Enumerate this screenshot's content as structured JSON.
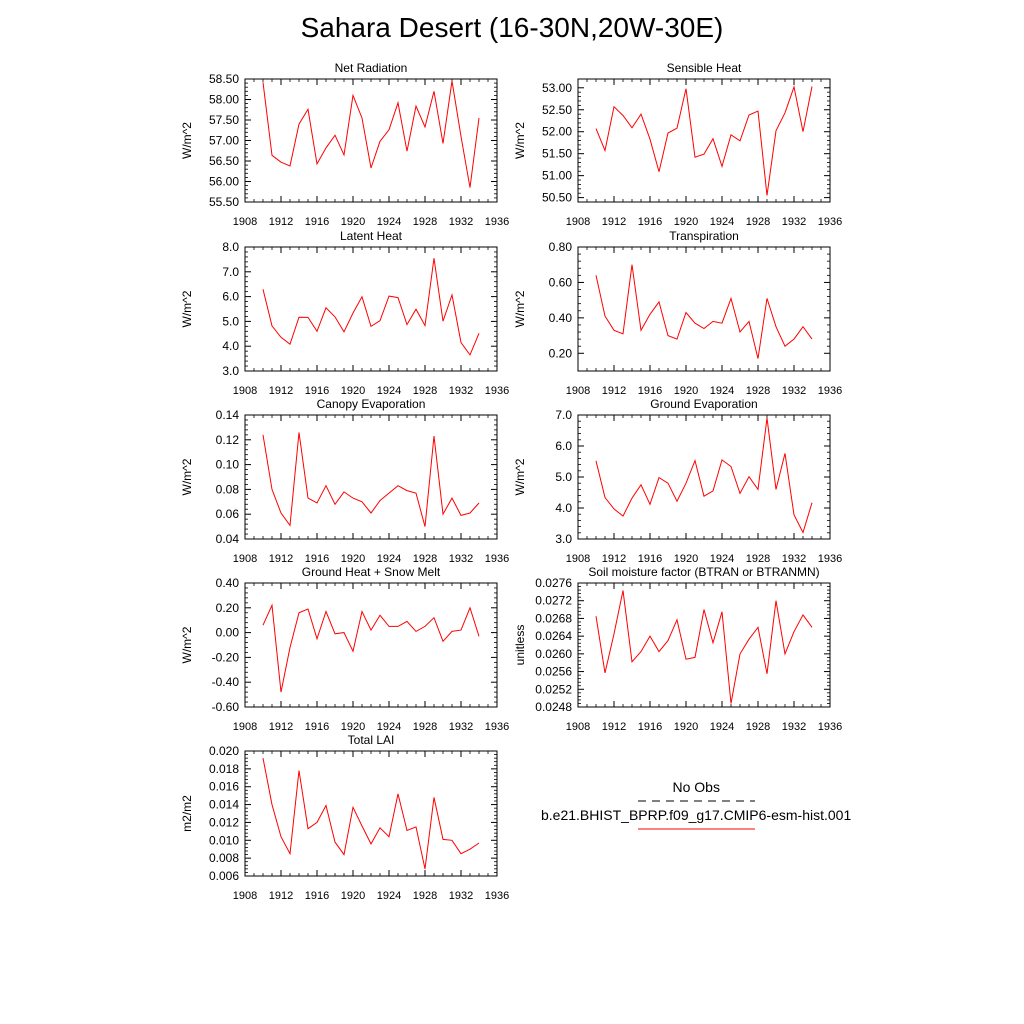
{
  "title": "Sahara Desert (16-30N,20W-30E)",
  "legend": {
    "items": [
      {
        "label": "No Obs",
        "color": "#000000",
        "dash": "8,6"
      },
      {
        "label": "b.e21.BHIST_BPRP.f09_g17.CMIP6-esm-hist.001",
        "color": "#ff0000",
        "dash": ""
      }
    ]
  },
  "chart_data": [
    {
      "type": "line",
      "title": "Net Radiation",
      "ylabel": "W/m^2",
      "xlim": [
        1908,
        1936
      ],
      "xticks": [
        1908,
        1912,
        1916,
        1920,
        1924,
        1928,
        1932,
        1936
      ],
      "ylim": [
        55.5,
        58.5
      ],
      "yticks": [
        "55.50",
        "56.00",
        "56.50",
        "57.00",
        "57.50",
        "58.00",
        "58.50"
      ],
      "series": [
        {
          "color": "#ff0000",
          "x": [
            1910,
            1911,
            1912,
            1913,
            1914,
            1915,
            1916,
            1917,
            1918,
            1919,
            1920,
            1921,
            1922,
            1923,
            1924,
            1925,
            1926,
            1927,
            1928,
            1929,
            1930,
            1931,
            1932,
            1933,
            1934
          ],
          "y": [
            58.42,
            56.64,
            56.47,
            56.38,
            57.4,
            57.76,
            56.43,
            56.82,
            57.13,
            56.65,
            58.1,
            57.55,
            56.33,
            56.98,
            57.26,
            57.92,
            56.74,
            57.84,
            57.33,
            58.2,
            56.93,
            58.45,
            57.1,
            55.85,
            57.55
          ]
        }
      ]
    },
    {
      "type": "line",
      "title": "Sensible Heat",
      "ylabel": "W/m^2",
      "xlim": [
        1908,
        1936
      ],
      "xticks": [
        1908,
        1912,
        1916,
        1920,
        1924,
        1928,
        1932,
        1936
      ],
      "ylim": [
        50.4,
        53.2
      ],
      "yticks": [
        "50.50",
        "51.00",
        "51.50",
        "52.00",
        "52.50",
        "53.00"
      ],
      "series": [
        {
          "color": "#ff0000",
          "x": [
            1910,
            1911,
            1912,
            1913,
            1914,
            1915,
            1916,
            1917,
            1918,
            1919,
            1920,
            1921,
            1922,
            1923,
            1924,
            1925,
            1926,
            1927,
            1928,
            1929,
            1930,
            1931,
            1932,
            1933,
            1934
          ],
          "y": [
            52.07,
            51.57,
            52.57,
            52.37,
            52.09,
            52.4,
            51.83,
            51.09,
            51.97,
            52.08,
            52.98,
            51.42,
            51.49,
            51.84,
            51.21,
            51.93,
            51.79,
            52.38,
            52.47,
            50.55,
            52.02,
            52.43,
            53.02,
            52.0,
            53.03
          ]
        }
      ]
    },
    {
      "type": "line",
      "title": "Latent Heat",
      "ylabel": "W/m^2",
      "xlim": [
        1908,
        1936
      ],
      "xticks": [
        1908,
        1912,
        1916,
        1920,
        1924,
        1928,
        1932,
        1936
      ],
      "ylim": [
        3.0,
        8.0
      ],
      "yticks": [
        "3.0",
        "4.0",
        "5.0",
        "6.0",
        "7.0",
        "8.0"
      ],
      "series": [
        {
          "color": "#ff0000",
          "x": [
            1910,
            1911,
            1912,
            1913,
            1914,
            1915,
            1916,
            1917,
            1918,
            1919,
            1920,
            1921,
            1922,
            1923,
            1924,
            1925,
            1926,
            1927,
            1928,
            1929,
            1930,
            1931,
            1932,
            1933,
            1934
          ],
          "y": [
            6.3,
            4.82,
            4.36,
            4.08,
            5.17,
            5.16,
            4.6,
            5.55,
            5.18,
            4.58,
            5.34,
            5.99,
            4.8,
            5.03,
            6.02,
            5.96,
            4.87,
            5.49,
            4.83,
            7.55,
            5.01,
            6.07,
            4.15,
            3.65,
            4.52
          ]
        }
      ]
    },
    {
      "type": "line",
      "title": "Transpiration",
      "ylabel": "W/m^2",
      "xlim": [
        1908,
        1936
      ],
      "xticks": [
        1908,
        1912,
        1916,
        1920,
        1924,
        1928,
        1932,
        1936
      ],
      "ylim": [
        0.1,
        0.8
      ],
      "yticks": [
        "0.20",
        "0.40",
        "0.60",
        "0.80"
      ],
      "series": [
        {
          "color": "#ff0000",
          "x": [
            1910,
            1911,
            1912,
            1913,
            1914,
            1915,
            1916,
            1917,
            1918,
            1919,
            1920,
            1921,
            1922,
            1923,
            1924,
            1925,
            1926,
            1927,
            1928,
            1929,
            1930,
            1931,
            1932,
            1933,
            1934
          ],
          "y": [
            0.64,
            0.41,
            0.33,
            0.31,
            0.7,
            0.33,
            0.42,
            0.49,
            0.3,
            0.28,
            0.43,
            0.37,
            0.34,
            0.38,
            0.37,
            0.51,
            0.32,
            0.38,
            0.17,
            0.51,
            0.35,
            0.24,
            0.28,
            0.35,
            0.28
          ]
        }
      ]
    },
    {
      "type": "line",
      "title": "Canopy Evaporation",
      "ylabel": "W/m^2",
      "xlim": [
        1908,
        1936
      ],
      "xticks": [
        1908,
        1912,
        1916,
        1920,
        1924,
        1928,
        1932,
        1936
      ],
      "ylim": [
        0.04,
        0.14
      ],
      "yticks": [
        "0.04",
        "0.06",
        "0.08",
        "0.10",
        "0.12",
        "0.14"
      ],
      "series": [
        {
          "color": "#ff0000",
          "x": [
            1910,
            1911,
            1912,
            1913,
            1914,
            1915,
            1916,
            1917,
            1918,
            1919,
            1920,
            1921,
            1922,
            1923,
            1924,
            1925,
            1926,
            1927,
            1928,
            1929,
            1930,
            1931,
            1932,
            1933,
            1934
          ],
          "y": [
            0.124,
            0.08,
            0.061,
            0.051,
            0.126,
            0.073,
            0.069,
            0.083,
            0.068,
            0.078,
            0.073,
            0.07,
            0.061,
            0.071,
            0.077,
            0.083,
            0.079,
            0.077,
            0.05,
            0.123,
            0.06,
            0.073,
            0.059,
            0.061,
            0.069
          ]
        }
      ]
    },
    {
      "type": "line",
      "title": "Ground Evaporation",
      "ylabel": "W/m^2",
      "xlim": [
        1908,
        1936
      ],
      "xticks": [
        1908,
        1912,
        1916,
        1920,
        1924,
        1928,
        1932,
        1936
      ],
      "ylim": [
        3.0,
        7.0
      ],
      "yticks": [
        "3.0",
        "4.0",
        "5.0",
        "6.0",
        "7.0"
      ],
      "series": [
        {
          "color": "#ff0000",
          "x": [
            1910,
            1911,
            1912,
            1913,
            1914,
            1915,
            1916,
            1917,
            1918,
            1919,
            1920,
            1921,
            1922,
            1923,
            1924,
            1925,
            1926,
            1927,
            1928,
            1929,
            1930,
            1931,
            1932,
            1933,
            1934
          ],
          "y": [
            5.52,
            4.34,
            3.97,
            3.74,
            4.32,
            4.75,
            4.12,
            4.98,
            4.8,
            4.22,
            4.8,
            5.53,
            4.38,
            4.55,
            5.55,
            5.34,
            4.47,
            5.01,
            4.6,
            6.9,
            4.6,
            5.76,
            3.78,
            3.21,
            4.17
          ]
        }
      ]
    },
    {
      "type": "line",
      "title": "Ground Heat + Snow Melt",
      "ylabel": "W/m^2",
      "xlim": [
        1908,
        1936
      ],
      "xticks": [
        1908,
        1912,
        1916,
        1920,
        1924,
        1928,
        1932,
        1936
      ],
      "ylim": [
        -0.6,
        0.4
      ],
      "yticks": [
        "-0.60",
        "-0.40",
        "-0.20",
        "0.00",
        "0.20",
        "0.40"
      ],
      "series": [
        {
          "color": "#ff0000",
          "x": [
            1910,
            1911,
            1912,
            1913,
            1914,
            1915,
            1916,
            1917,
            1918,
            1919,
            1920,
            1921,
            1922,
            1923,
            1924,
            1925,
            1926,
            1927,
            1928,
            1929,
            1930,
            1931,
            1932,
            1933,
            1934
          ],
          "y": [
            0.06,
            0.22,
            -0.48,
            -0.12,
            0.16,
            0.19,
            -0.05,
            0.17,
            -0.01,
            0.0,
            -0.15,
            0.17,
            0.02,
            0.14,
            0.05,
            0.05,
            0.09,
            0.01,
            0.05,
            0.12,
            -0.07,
            0.01,
            0.02,
            0.2,
            -0.03
          ]
        }
      ]
    },
    {
      "type": "line",
      "title": "Soil moisture factor (BTRAN or BTRANMN)",
      "ylabel": "unitless",
      "xlim": [
        1908,
        1936
      ],
      "xticks": [
        1908,
        1912,
        1916,
        1920,
        1924,
        1928,
        1932,
        1936
      ],
      "ylim": [
        0.0248,
        0.0276
      ],
      "yticks": [
        "0.0248",
        "0.0252",
        "0.0256",
        "0.0260",
        "0.0264",
        "0.0268",
        "0.0272",
        "0.0276"
      ],
      "series": [
        {
          "color": "#ff0000",
          "x": [
            1910,
            1911,
            1912,
            1913,
            1914,
            1915,
            1916,
            1917,
            1918,
            1919,
            1920,
            1921,
            1922,
            1923,
            1924,
            1925,
            1926,
            1927,
            1928,
            1929,
            1930,
            1931,
            1932,
            1933,
            1934
          ],
          "y": [
            0.02685,
            0.02557,
            0.02645,
            0.02743,
            0.02582,
            0.02605,
            0.0264,
            0.02605,
            0.0263,
            0.02677,
            0.02588,
            0.02592,
            0.027,
            0.02625,
            0.02695,
            0.02488,
            0.026,
            0.02633,
            0.0266,
            0.02555,
            0.0272,
            0.026,
            0.0265,
            0.02688,
            0.0266
          ]
        }
      ]
    },
    {
      "type": "line",
      "title": "Total LAI",
      "ylabel": "m2/m2",
      "xlim": [
        1908,
        1936
      ],
      "xticks": [
        1908,
        1912,
        1916,
        1920,
        1924,
        1928,
        1932,
        1936
      ],
      "ylim": [
        0.006,
        0.02
      ],
      "yticks": [
        "0.006",
        "0.008",
        "0.010",
        "0.012",
        "0.014",
        "0.016",
        "0.018",
        "0.020"
      ],
      "series": [
        {
          "color": "#ff0000",
          "x": [
            1910,
            1911,
            1912,
            1913,
            1914,
            1915,
            1916,
            1917,
            1918,
            1919,
            1920,
            1921,
            1922,
            1923,
            1924,
            1925,
            1926,
            1927,
            1928,
            1929,
            1930,
            1931,
            1932,
            1933,
            1934
          ],
          "y": [
            0.0192,
            0.014,
            0.0104,
            0.0085,
            0.0178,
            0.0113,
            0.012,
            0.0139,
            0.0098,
            0.0084,
            0.0137,
            0.0116,
            0.0096,
            0.0114,
            0.0104,
            0.0152,
            0.0111,
            0.0115,
            0.0068,
            0.0148,
            0.0101,
            0.01,
            0.0085,
            0.009,
            0.0097
          ]
        }
      ]
    }
  ]
}
